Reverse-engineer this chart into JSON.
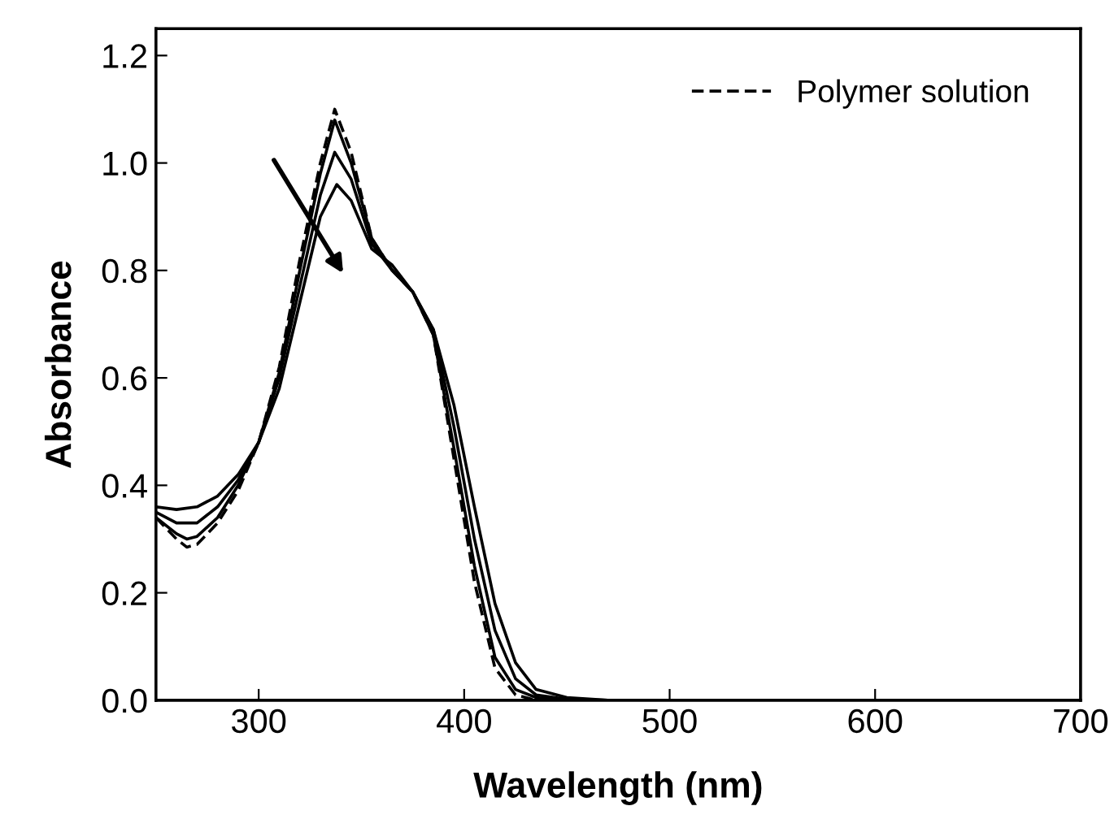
{
  "chart_data": {
    "type": "line",
    "xlabel": "Wavelength (nm)",
    "ylabel": "Absorbance",
    "xlim": [
      250,
      700
    ],
    "ylim": [
      0,
      1.25
    ],
    "xticks": [
      300,
      400,
      500,
      600,
      700
    ],
    "yticks": [
      {
        "value": 0,
        "label": "0.0"
      },
      0.2,
      0.4,
      0.6,
      0.8,
      {
        "value": 1,
        "label": "1.0"
      },
      1.2
    ],
    "legend": "top right",
    "grid": false,
    "series": [
      {
        "name": "Polymer solution",
        "color": "#000000",
        "line_style": "dashed",
        "x": [
          250,
          260,
          265,
          270,
          280,
          290,
          300,
          310,
          320,
          330,
          337,
          345,
          355,
          365,
          375,
          385,
          395,
          405,
          415,
          425,
          435,
          500,
          600,
          700
        ],
        "values": [
          0.34,
          0.3,
          0.285,
          0.29,
          0.33,
          0.39,
          0.48,
          0.62,
          0.82,
          1.0,
          1.1,
          1.02,
          0.86,
          0.8,
          0.76,
          0.68,
          0.45,
          0.22,
          0.06,
          0.01,
          0,
          0,
          0,
          0
        ]
      },
      {
        "color": "#000000",
        "line_style": "solid",
        "x": [
          250,
          260,
          265,
          270,
          280,
          290,
          300,
          310,
          320,
          330,
          337,
          345,
          355,
          365,
          375,
          385,
          395,
          405,
          415,
          425,
          435,
          450,
          500,
          600,
          700
        ],
        "values": [
          0.34,
          0.31,
          0.3,
          0.305,
          0.34,
          0.4,
          0.48,
          0.61,
          0.8,
          0.98,
          1.08,
          1.0,
          0.86,
          0.8,
          0.76,
          0.68,
          0.47,
          0.25,
          0.08,
          0.02,
          0.005,
          0,
          0,
          0,
          0
        ]
      },
      {
        "color": "#000000",
        "line_style": "solid",
        "x": [
          250,
          260,
          270,
          280,
          290,
          300,
          310,
          320,
          330,
          337,
          345,
          355,
          365,
          375,
          385,
          395,
          405,
          415,
          425,
          435,
          450,
          470,
          600,
          700
        ],
        "values": [
          0.35,
          0.33,
          0.33,
          0.36,
          0.41,
          0.48,
          0.6,
          0.77,
          0.94,
          1.02,
          0.97,
          0.85,
          0.8,
          0.76,
          0.69,
          0.51,
          0.3,
          0.13,
          0.04,
          0.01,
          0.002,
          0,
          0,
          0
        ]
      },
      {
        "color": "#000000",
        "line_style": "solid",
        "x": [
          250,
          260,
          270,
          280,
          290,
          300,
          310,
          320,
          330,
          338,
          345,
          355,
          365,
          375,
          385,
          395,
          405,
          415,
          425,
          435,
          450,
          470,
          600,
          700
        ],
        "values": [
          0.36,
          0.355,
          0.36,
          0.38,
          0.42,
          0.48,
          0.58,
          0.74,
          0.9,
          0.96,
          0.93,
          0.84,
          0.81,
          0.76,
          0.69,
          0.55,
          0.36,
          0.18,
          0.07,
          0.02,
          0.005,
          0,
          0,
          0
        ]
      }
    ]
  }
}
